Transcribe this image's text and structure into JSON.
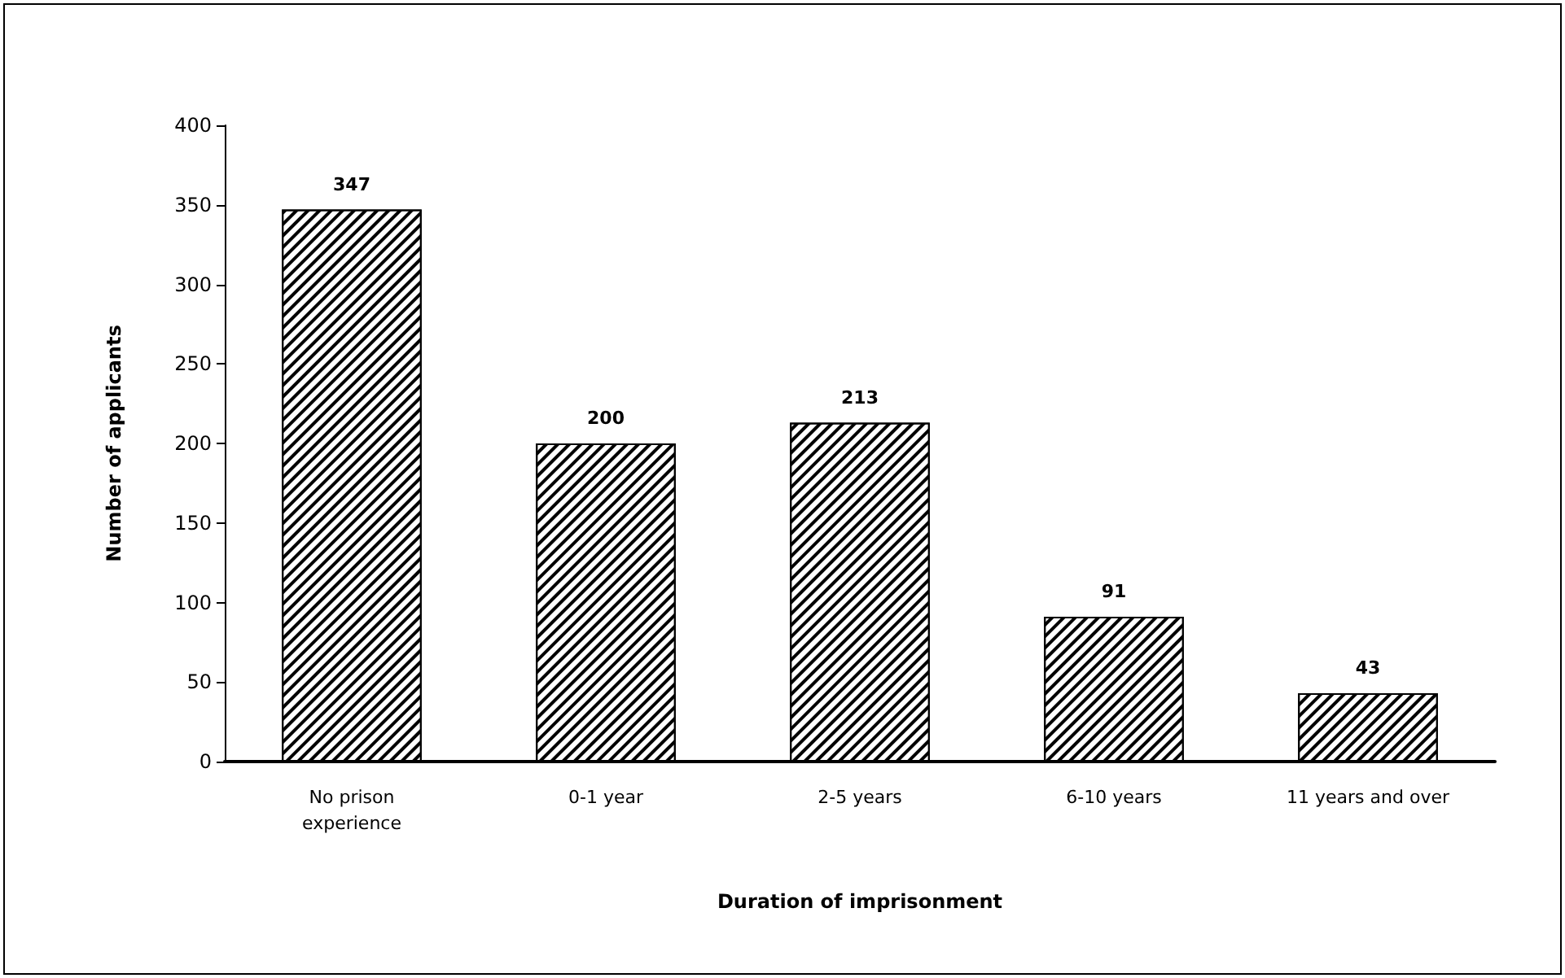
{
  "chart_data": {
    "type": "bar",
    "xlabel": "Duration of imprisonment",
    "ylabel": "Number of applicants",
    "categories": [
      "No prison\nexperience",
      "0-1 year",
      "2-5 years",
      "6-10 years",
      "11 years and over"
    ],
    "values": [
      347,
      200,
      213,
      91,
      43
    ],
    "color": "#000000",
    "data_labels": true,
    "ylim": [
      0,
      400
    ],
    "yticks": [
      0,
      50,
      100,
      150,
      200,
      250,
      300,
      350,
      400
    ],
    "grid": false
  }
}
